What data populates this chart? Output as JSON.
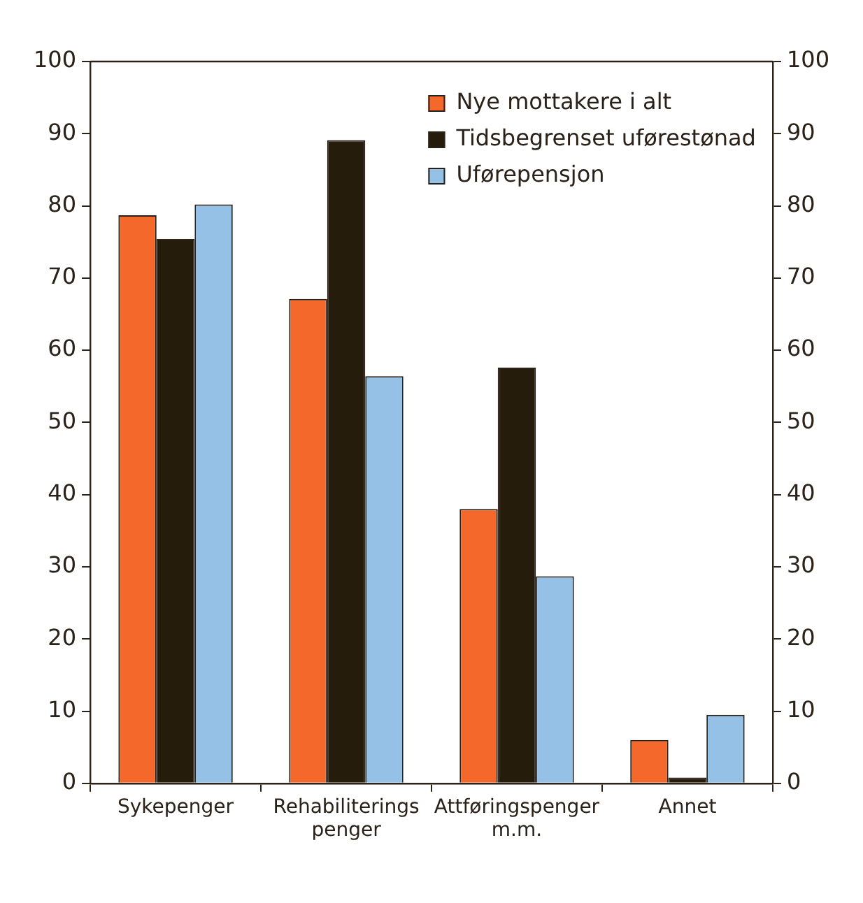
{
  "chart_data": {
    "type": "bar",
    "categories": [
      "Sykepenger",
      "Rehabiliterings penger",
      "Attføringspenger m.m.",
      "Annet"
    ],
    "series": [
      {
        "name": "Nye mottakere i alt",
        "color": "#f4682c",
        "values": [
          78.7,
          67.1,
          38.0,
          6.0
        ]
      },
      {
        "name": "Tidsbegrenset uførestønad",
        "color": "#261c0c",
        "values": [
          75.4,
          89.1,
          57.6,
          0.8
        ]
      },
      {
        "name": "Uførepensjon",
        "color": "#94c1e5",
        "values": [
          80.2,
          56.4,
          28.7,
          9.5
        ]
      }
    ],
    "ylim": [
      0,
      100
    ],
    "yticks": [
      0,
      10,
      20,
      30,
      40,
      50,
      60,
      70,
      80,
      90,
      100
    ],
    "y2lim": [
      0,
      100
    ],
    "y2ticks": [
      0,
      10,
      20,
      30,
      40,
      50,
      60,
      70,
      80,
      90,
      100
    ],
    "grid": false,
    "legend": "top right"
  }
}
